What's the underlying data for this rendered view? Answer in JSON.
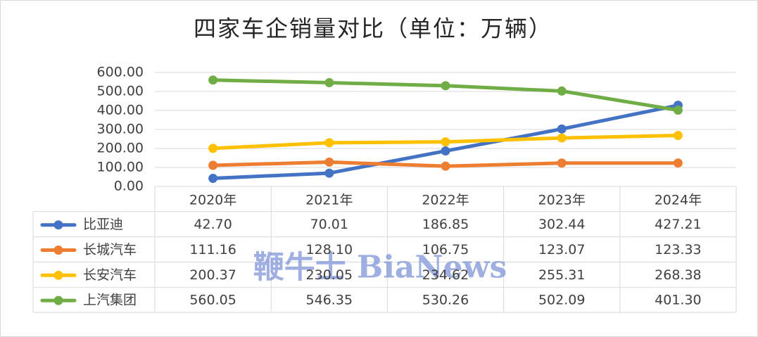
{
  "chart_data": {
    "type": "line",
    "title": "四家车企销量对比（单位：万辆）",
    "categories": [
      "2020年",
      "2021年",
      "2022年",
      "2023年",
      "2024年"
    ],
    "series": [
      {
        "name": "比亚迪",
        "color": "#4472c4",
        "values": [
          42.7,
          70.01,
          186.85,
          302.44,
          427.21
        ],
        "value_labels": [
          "42.70",
          "70.01",
          "186.85",
          "302.44",
          "427.21"
        ]
      },
      {
        "name": "长城汽车",
        "color": "#ed7d31",
        "values": [
          111.16,
          128.1,
          106.75,
          123.07,
          123.33
        ],
        "value_labels": [
          "111.16",
          "128.10",
          "106.75",
          "123.07",
          "123.33"
        ]
      },
      {
        "name": "长安汽车",
        "color": "#ffc000",
        "values": [
          200.37,
          230.05,
          234.62,
          255.31,
          268.38
        ],
        "value_labels": [
          "200.37",
          "230.05",
          "234.62",
          "255.31",
          "268.38"
        ]
      },
      {
        "name": "上汽集团",
        "color": "#70ad47",
        "values": [
          560.05,
          546.35,
          530.26,
          502.09,
          401.3
        ],
        "value_labels": [
          "560.05",
          "546.35",
          "530.26",
          "502.09",
          "401.30"
        ]
      }
    ],
    "ylim": [
      0,
      600
    ],
    "yticks": [
      {
        "value": 0,
        "label": "0.00"
      },
      {
        "value": 100,
        "label": "100.00"
      },
      {
        "value": 200,
        "label": "200.00"
      },
      {
        "value": 300,
        "label": "300.00"
      },
      {
        "value": 400,
        "label": "400.00"
      },
      {
        "value": 500,
        "label": "500.00"
      },
      {
        "value": 600,
        "label": "600.00"
      }
    ],
    "grid": true,
    "watermark": "鞭牛士 BiaNews"
  }
}
